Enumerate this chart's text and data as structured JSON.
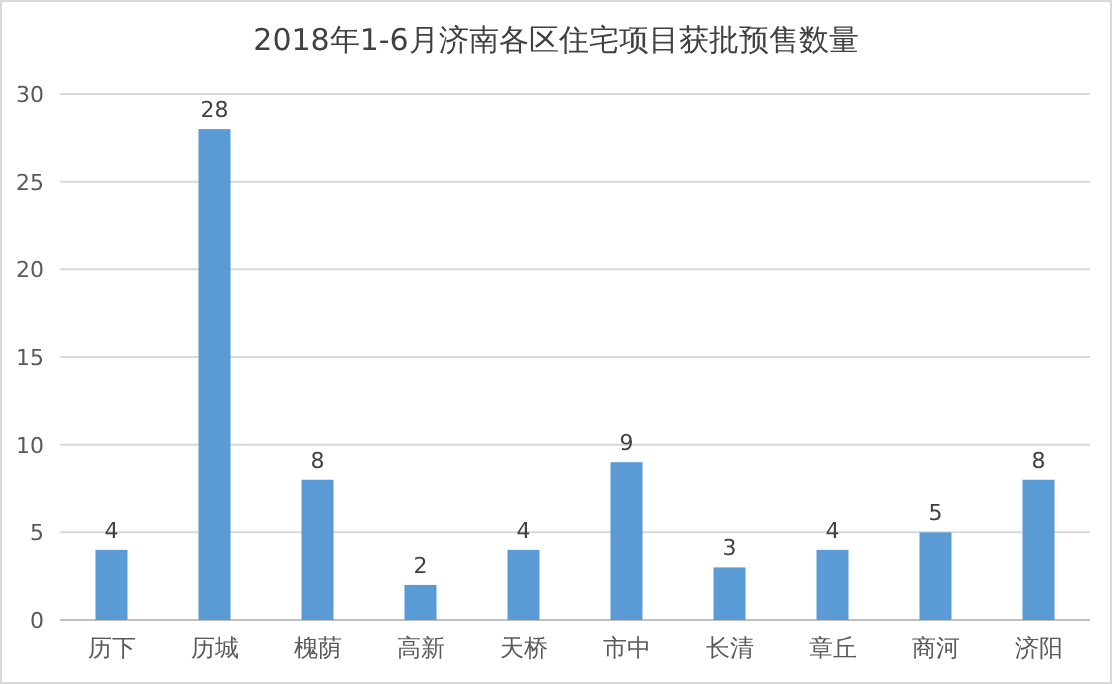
{
  "chart_data": {
    "type": "bar",
    "title": "2018年1-6月济南各区住宅项目获批预售数量",
    "categories": [
      "历下",
      "历城",
      "槐荫",
      "高新",
      "天桥",
      "市中",
      "长清",
      "章丘",
      "商河",
      "济阳"
    ],
    "values": [
      4,
      28,
      8,
      2,
      4,
      9,
      3,
      4,
      5,
      8
    ],
    "color": "#5b9bd5",
    "ylim": [
      0,
      30
    ],
    "yticks": [
      0,
      5,
      10,
      15,
      20,
      25,
      30
    ],
    "grid": "y",
    "data_labels": true
  }
}
